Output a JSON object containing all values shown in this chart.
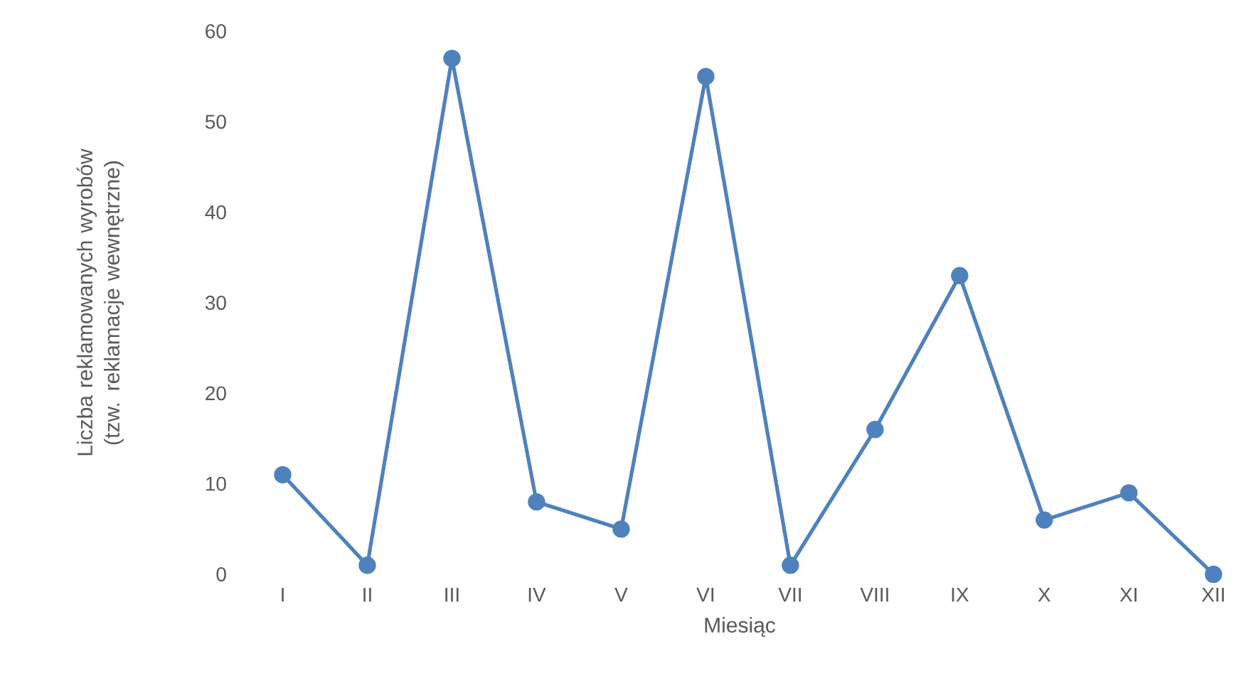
{
  "chart_data": {
    "type": "line",
    "xlabel": "Miesiąc",
    "ylabel": "Liczba reklamowanych wyrobów (tzw. reklamacje wewnętrzne)",
    "categories": [
      "I",
      "II",
      "III",
      "IV",
      "V",
      "VI",
      "VII",
      "VIII",
      "IX",
      "X",
      "XI",
      "XII"
    ],
    "values": [
      11,
      1,
      57,
      8,
      5,
      55,
      1,
      16,
      33,
      6,
      9,
      0
    ],
    "color": "#4f81bd",
    "marker": "circle",
    "line_style": "solid",
    "grid": false,
    "ylim": [
      0,
      60
    ],
    "yticks": [
      0,
      10,
      20,
      30,
      40,
      50,
      60
    ]
  }
}
